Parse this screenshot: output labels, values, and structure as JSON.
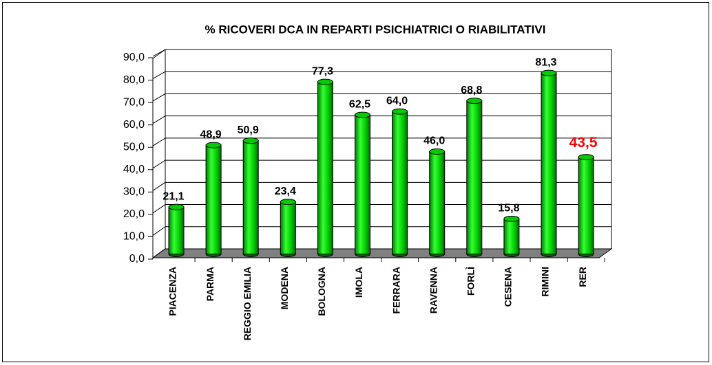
{
  "chart_data": {
    "type": "bar",
    "title": "% RICOVERI DCA IN REPARTI PSICHIATRICI O RIABILITATIVI",
    "categories": [
      "PIACENZA",
      "PARMA",
      "REGGIO EMILIA",
      "MODENA",
      "BOLOGNA",
      "IMOLA",
      "FERRARA",
      "RAVENNA",
      "FORLÌ",
      "CESENA",
      "RIMINI",
      "RER"
    ],
    "values": [
      21.1,
      48.9,
      50.9,
      23.4,
      77.3,
      62.5,
      64.0,
      46.0,
      68.8,
      15.8,
      81.3,
      43.5
    ],
    "value_labels": [
      "21,1",
      "48,9",
      "50,9",
      "23,4",
      "77,3",
      "62,5",
      "64,0",
      "46,0",
      "68,8",
      "15,8",
      "81,3",
      "43,5"
    ],
    "color": "#00cc00",
    "highlight_index": 11,
    "highlight_color": "#ff0000",
    "ylim": [
      0,
      90
    ],
    "yticks": [
      {
        "value": 0,
        "label": "0,0"
      },
      {
        "value": 10,
        "label": "10,0"
      },
      {
        "value": 20,
        "label": "20,0"
      },
      {
        "value": 30,
        "label": "30,0"
      },
      {
        "value": 40,
        "label": "40,0"
      },
      {
        "value": 50,
        "label": "50,0"
      },
      {
        "value": 60,
        "label": "60,0"
      },
      {
        "value": 70,
        "label": "70,0"
      },
      {
        "value": 80,
        "label": "80,0"
      },
      {
        "value": 90,
        "label": "90,0"
      }
    ],
    "grid": true
  }
}
